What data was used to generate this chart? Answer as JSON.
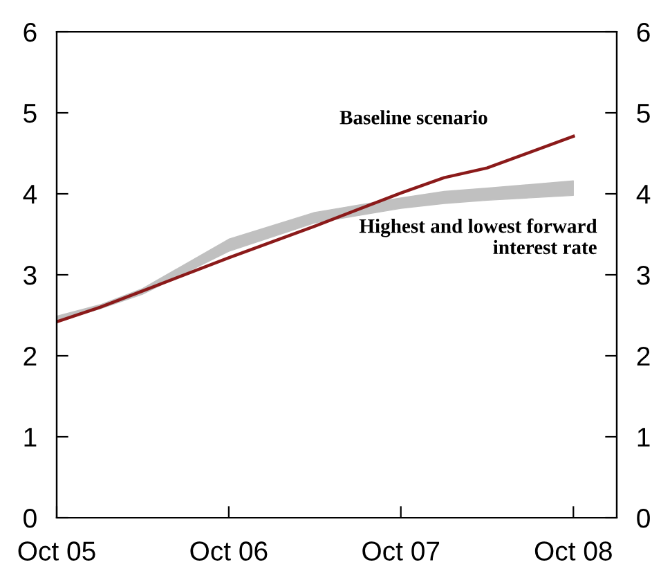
{
  "chart_data": {
    "type": "line",
    "xlim": [
      "2005-10",
      "2009-01"
    ],
    "xticks": [
      {
        "value": "2005-10",
        "label": "Oct 05"
      },
      {
        "value": "2006-10",
        "label": "Oct 06"
      },
      {
        "value": "2007-10",
        "label": "Oct 07"
      },
      {
        "value": "2008-10",
        "label": "Oct 08"
      }
    ],
    "ylim": [
      0,
      6
    ],
    "yticks": [
      0,
      1,
      2,
      3,
      4,
      5,
      6
    ],
    "y2lim": [
      0,
      6
    ],
    "y2ticks": [
      0,
      1,
      2,
      3,
      4,
      5,
      6
    ],
    "grid": false,
    "legend": false,
    "annotations": [
      "Highest and lowest forward interest rate"
    ],
    "series": [
      {
        "type": "area",
        "color": "#c0c0c0",
        "x": [
          "2005-10",
          "2006-01",
          "2006-04",
          "2006-10",
          "2007-04",
          "2007-10",
          "2008-01",
          "2008-04",
          "2008-10"
        ],
        "values": [
          null,
          null,
          null,
          null,
          null,
          null,
          null,
          null,
          null
        ],
        "lower": [
          2.42,
          2.58,
          2.76,
          3.29,
          3.64,
          3.82,
          3.88,
          3.92,
          3.98
        ],
        "upper": [
          2.49,
          2.63,
          2.83,
          3.44,
          3.77,
          3.95,
          4.03,
          4.07,
          4.16
        ]
      },
      {
        "name": "Baseline scenario",
        "color": "#8b1a1a",
        "x": [
          "2005-10",
          "2006-01",
          "2006-04",
          "2006-10",
          "2007-04",
          "2007-10",
          "2008-01",
          "2008-04",
          "2008-10"
        ],
        "values": [
          2.42,
          2.6,
          2.8,
          3.21,
          3.6,
          4.01,
          4.2,
          4.32,
          4.71
        ]
      }
    ]
  }
}
